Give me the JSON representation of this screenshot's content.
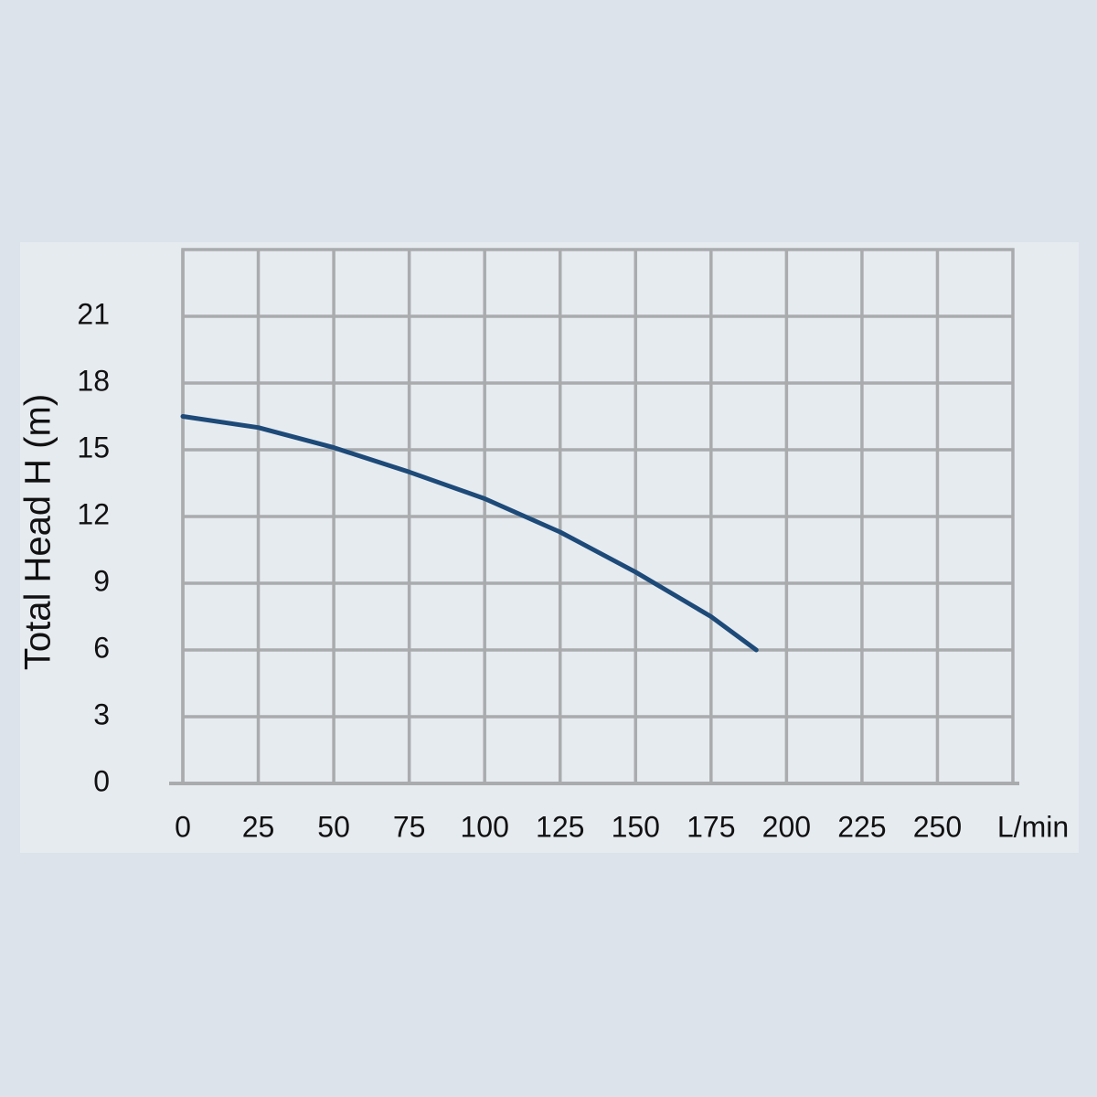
{
  "chart_data": {
    "type": "line",
    "x_label": "L/min",
    "y_label": "Total Head H (m)",
    "x": [
      0,
      25,
      50,
      75,
      100,
      125,
      150,
      175,
      190
    ],
    "series": [
      {
        "color": "#1d4a78",
        "values": [
          16.5,
          16.0,
          15.1,
          14.0,
          12.8,
          11.3,
          9.5,
          7.5,
          6.0
        ]
      }
    ],
    "xlim": [
      0,
      275
    ],
    "xticks": [
      0,
      25,
      50,
      75,
      100,
      125,
      150,
      175,
      200,
      225,
      250
    ],
    "ylim": [
      0,
      24
    ],
    "yticks": [
      0,
      3,
      6,
      9,
      12,
      15,
      18,
      21
    ],
    "grid": true
  }
}
